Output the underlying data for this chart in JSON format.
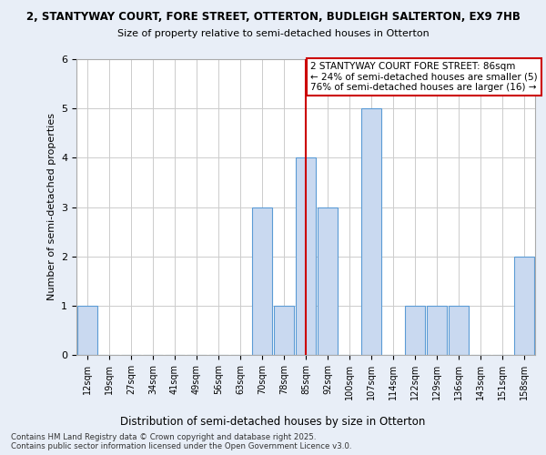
{
  "title_line1": "2, STANTYWAY COURT, FORE STREET, OTTERTON, BUDLEIGH SALTERTON, EX9 7HB",
  "title_line2": "Size of property relative to semi-detached houses in Otterton",
  "xlabel": "Distribution of semi-detached houses by size in Otterton",
  "ylabel": "Number of semi-detached properties",
  "categories": [
    "12sqm",
    "19sqm",
    "27sqm",
    "34sqm",
    "41sqm",
    "49sqm",
    "56sqm",
    "63sqm",
    "70sqm",
    "78sqm",
    "85sqm",
    "92sqm",
    "100sqm",
    "107sqm",
    "114sqm",
    "122sqm",
    "129sqm",
    "136sqm",
    "143sqm",
    "151sqm",
    "158sqm"
  ],
  "values": [
    1,
    0,
    0,
    0,
    0,
    0,
    0,
    0,
    3,
    1,
    4,
    3,
    0,
    5,
    0,
    1,
    1,
    1,
    0,
    0,
    2
  ],
  "bar_color": "#c9d9f0",
  "bar_edge_color": "#5b9bd5",
  "red_line_x": 10,
  "annotation_text": "2 STANTYWAY COURT FORE STREET: 86sqm\n← 24% of semi-detached houses are smaller (5)\n76% of semi-detached houses are larger (16) →",
  "annotation_box_color": "#ffffff",
  "annotation_box_edge_color": "#cc0000",
  "red_line_color": "#cc0000",
  "footer_text": "Contains HM Land Registry data © Crown copyright and database right 2025.\nContains public sector information licensed under the Open Government Licence v3.0.",
  "ylim": [
    0,
    6
  ],
  "background_color": "#e8eef7",
  "plot_background_color": "#ffffff",
  "grid_color": "#cccccc"
}
